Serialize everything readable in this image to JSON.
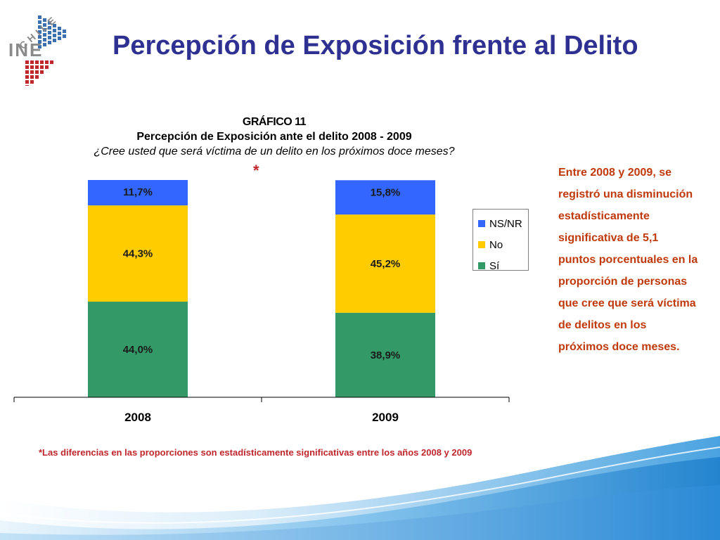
{
  "title": "Percepción de Exposición frente al Delito",
  "logo": {
    "top_text": "CHILE",
    "bottom_text": "INE"
  },
  "chart_data": {
    "type": "bar",
    "stacked": true,
    "number": "GRÁFICO 11",
    "title": "Percepción de Exposición ante el delito 2008 - 2009",
    "subtitle": "¿Cree usted que será víctima de un delito en los próximos doce meses?",
    "asterisk": "*",
    "categories": [
      "2008",
      "2009"
    ],
    "series": [
      {
        "name": "Sí",
        "values": [
          44.0,
          38.9
        ],
        "labels": [
          "44,0%",
          "38,9%"
        ],
        "color": "#339966"
      },
      {
        "name": "No",
        "values": [
          44.3,
          45.2
        ],
        "labels": [
          "44,3%",
          "45,2%"
        ],
        "color": "#ffcc00"
      },
      {
        "name": "NS/NR",
        "values": [
          11.7,
          15.8
        ],
        "labels": [
          "11,7%",
          "15,8%"
        ],
        "color": "#3366ff"
      }
    ],
    "legend_order": [
      "NS/NR",
      "No",
      "Sí"
    ],
    "ylim": [
      0,
      100
    ],
    "grid": false,
    "legend_position": "right"
  },
  "side_note": "Entre 2008 y 2009, se registró una disminución estadísticamente significativa de 5,1 puntos porcentuales en la proporción de personas que cree que será víctima de delitos en los próximos doce meses.",
  "footnote": "*Las diferencias en las proporciones son estadísticamente significativas entre los años 2008 y 2009",
  "colors": {
    "title": "#2e3192",
    "note": "#c0390b",
    "footnote": "#c0272d",
    "logo_blue": "#3a6fb0",
    "logo_red": "#c0272d"
  }
}
